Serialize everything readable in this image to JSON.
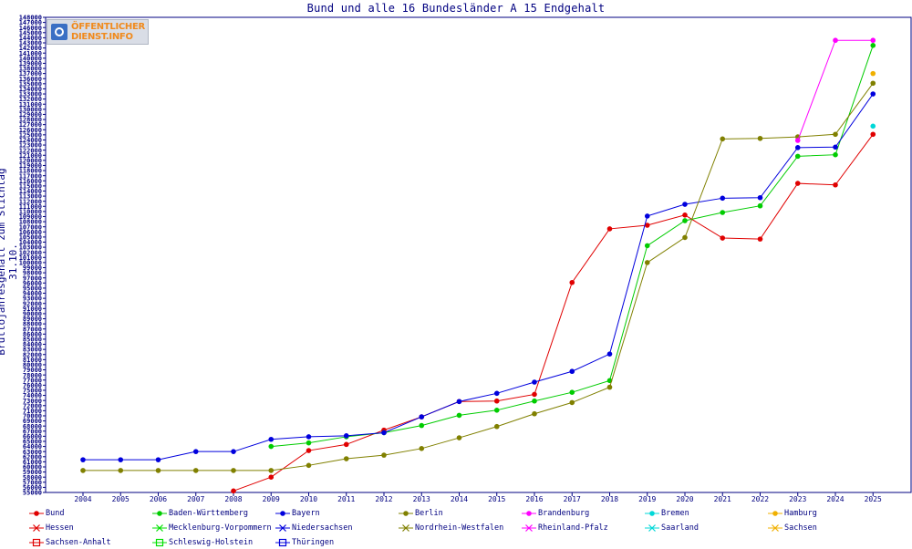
{
  "logo": {
    "line1": "ÖFFENTLICHER",
    "line2": "DIENST.INFO"
  },
  "chart_data": {
    "type": "line",
    "title": "Bund und alle 16 Bundesländer A 15 Endgehalt",
    "xlabel": "",
    "ylabel": "Bruttojahresgehalt zum Stichtag 31.10.",
    "x": [
      2004,
      2005,
      2006,
      2007,
      2008,
      2009,
      2010,
      2011,
      2012,
      2013,
      2014,
      2015,
      2016,
      2017,
      2018,
      2019,
      2020,
      2021,
      2022,
      2023,
      2024,
      2025
    ],
    "ylim": [
      55000,
      148000
    ],
    "ytick_step": 1000,
    "grid": false,
    "legend_position": "bottom",
    "series": [
      {
        "name": "Bund",
        "color": "#e00000",
        "marker": "dot",
        "values": [
          null,
          null,
          null,
          null,
          55300,
          58000,
          63200,
          64400,
          67200,
          69800,
          72800,
          72900,
          74200,
          96100,
          106600,
          107300,
          109300,
          104800,
          104600,
          115500,
          115200,
          125100
        ]
      },
      {
        "name": "Baden-Württemberg",
        "color": "#00cc00",
        "marker": "dot",
        "values": [
          null,
          null,
          null,
          null,
          null,
          64000,
          64700,
          65900,
          66700,
          68100,
          70100,
          71100,
          72900,
          74600,
          76900,
          103300,
          108200,
          109800,
          111100,
          120800,
          121100,
          142500
        ]
      },
      {
        "name": "Bayern",
        "color": "#0000dd",
        "marker": "dot",
        "values": [
          61400,
          61400,
          61400,
          63000,
          63000,
          65400,
          65900,
          66100,
          66700,
          69800,
          72800,
          74400,
          76600,
          78700,
          82100,
          109100,
          111400,
          112600,
          112700,
          122500,
          122600,
          133000
        ]
      },
      {
        "name": "Berlin",
        "color": "#808000",
        "marker": "dot",
        "values": [
          59300,
          59300,
          59300,
          59300,
          59300,
          59300,
          60300,
          61600,
          62300,
          63600,
          65700,
          67900,
          70400,
          72600,
          75600,
          100000,
          104900,
          124200,
          124300,
          124600,
          125100,
          135100
        ]
      },
      {
        "name": "Brandenburg",
        "color": "#ff00ff",
        "marker": "dot",
        "values": [
          null,
          null,
          null,
          null,
          null,
          null,
          null,
          null,
          null,
          null,
          null,
          null,
          null,
          null,
          null,
          null,
          null,
          null,
          null,
          123900,
          143500,
          143500
        ]
      },
      {
        "name": "Bremen",
        "color": "#00d8d8",
        "marker": "dot",
        "values": [
          null,
          null,
          null,
          null,
          null,
          null,
          null,
          null,
          null,
          null,
          null,
          null,
          null,
          null,
          null,
          null,
          null,
          null,
          null,
          null,
          null,
          126700
        ]
      },
      {
        "name": "Hamburg",
        "color": "#f0b000",
        "marker": "dot",
        "values": [
          null,
          null,
          null,
          null,
          null,
          null,
          null,
          null,
          null,
          null,
          null,
          null,
          null,
          null,
          null,
          null,
          null,
          null,
          null,
          null,
          null,
          137000
        ]
      },
      {
        "name": "Hessen",
        "color": "#e00000",
        "marker": "x",
        "values": [
          null,
          null,
          null,
          null,
          null,
          null,
          null,
          null,
          null,
          null,
          null,
          null,
          null,
          null,
          null,
          null,
          null,
          null,
          null,
          null,
          null,
          null
        ]
      },
      {
        "name": "Mecklenburg-Vorpommern",
        "color": "#00e000",
        "marker": "x",
        "values": [
          null,
          null,
          null,
          null,
          null,
          null,
          null,
          null,
          null,
          null,
          null,
          null,
          null,
          null,
          null,
          null,
          null,
          null,
          null,
          null,
          null,
          null
        ]
      },
      {
        "name": "Niedersachsen",
        "color": "#0000dd",
        "marker": "x",
        "values": [
          null,
          null,
          null,
          null,
          null,
          null,
          null,
          null,
          null,
          null,
          null,
          null,
          null,
          null,
          null,
          null,
          null,
          null,
          null,
          null,
          null,
          null
        ]
      },
      {
        "name": "Nordrhein-Westfalen",
        "color": "#808000",
        "marker": "x",
        "values": [
          null,
          null,
          null,
          null,
          null,
          null,
          null,
          null,
          null,
          null,
          null,
          null,
          null,
          null,
          null,
          null,
          null,
          null,
          null,
          null,
          null,
          null
        ]
      },
      {
        "name": "Rheinland-Pfalz",
        "color": "#ff00ff",
        "marker": "x",
        "values": [
          null,
          null,
          null,
          null,
          null,
          null,
          null,
          null,
          null,
          null,
          null,
          null,
          null,
          null,
          null,
          null,
          null,
          null,
          null,
          null,
          null,
          null
        ]
      },
      {
        "name": "Saarland",
        "color": "#00d8d8",
        "marker": "x",
        "values": [
          null,
          null,
          null,
          null,
          null,
          null,
          null,
          null,
          null,
          null,
          null,
          null,
          null,
          null,
          null,
          null,
          null,
          null,
          null,
          null,
          null,
          null
        ]
      },
      {
        "name": "Sachsen",
        "color": "#f0b000",
        "marker": "x",
        "values": [
          null,
          null,
          null,
          null,
          null,
          null,
          null,
          null,
          null,
          null,
          null,
          null,
          null,
          null,
          null,
          null,
          null,
          null,
          null,
          null,
          null,
          null
        ]
      },
      {
        "name": "Sachsen-Anhalt",
        "color": "#e00000",
        "marker": "square",
        "values": [
          null,
          null,
          null,
          null,
          null,
          null,
          null,
          null,
          null,
          null,
          null,
          null,
          null,
          null,
          null,
          null,
          null,
          null,
          null,
          null,
          null,
          null
        ]
      },
      {
        "name": "Schleswig-Holstein",
        "color": "#00e000",
        "marker": "square",
        "values": [
          null,
          null,
          null,
          null,
          null,
          null,
          null,
          null,
          null,
          null,
          null,
          null,
          null,
          null,
          null,
          null,
          null,
          null,
          null,
          null,
          null,
          null
        ]
      },
      {
        "name": "Thüringen",
        "color": "#0000dd",
        "marker": "square",
        "values": [
          null,
          null,
          null,
          null,
          null,
          null,
          null,
          null,
          null,
          null,
          null,
          null,
          null,
          null,
          null,
          null,
          null,
          null,
          null,
          null,
          null,
          null
        ]
      }
    ]
  }
}
